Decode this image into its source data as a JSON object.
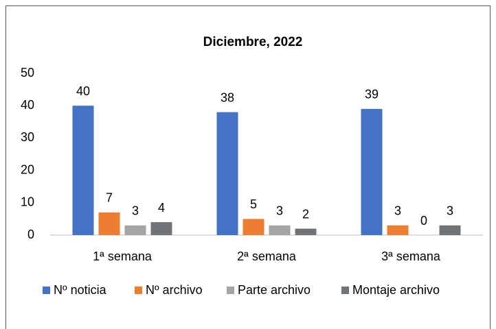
{
  "chart_data": {
    "type": "bar",
    "title": "Diciembre, 2022",
    "categories": [
      "1ª semana",
      "2ª semana",
      "3ª semana"
    ],
    "series": [
      {
        "name": "Nº noticia",
        "color": "#4472c4",
        "values": [
          40,
          38,
          39
        ]
      },
      {
        "name": "Nº archivo",
        "color": "#ed7d31",
        "values": [
          7,
          5,
          3
        ]
      },
      {
        "name": "Parte archivo",
        "color": "#a5a5a5",
        "values": [
          3,
          3,
          0
        ]
      },
      {
        "name": "Montaje archivo",
        "color": "#707478",
        "values": [
          4,
          2,
          3
        ]
      }
    ],
    "ylim": [
      0,
      50
    ],
    "yticks": [
      0,
      10,
      20,
      30,
      40,
      50
    ],
    "grid": false,
    "legend": "bottom"
  }
}
